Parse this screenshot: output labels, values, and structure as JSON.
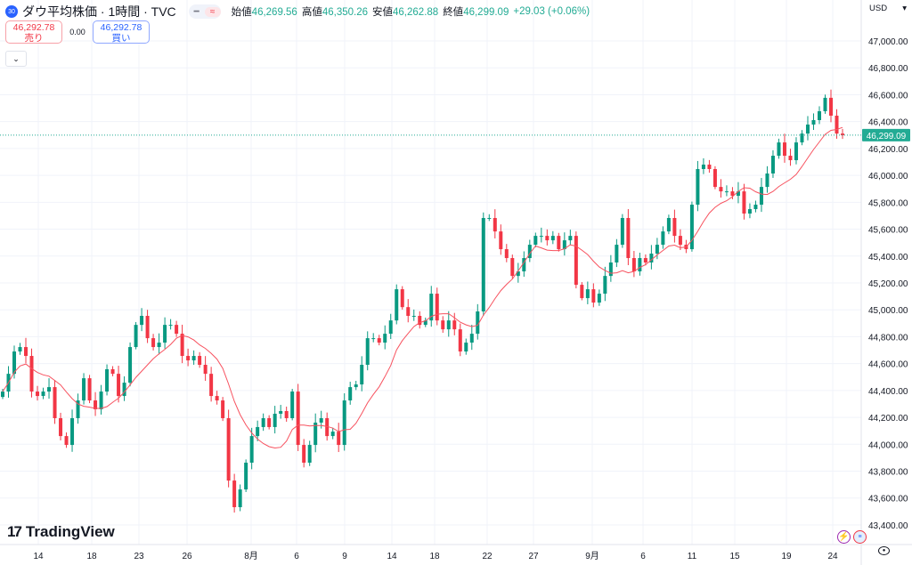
{
  "header": {
    "symbol_badge": "30",
    "title": "ダウ平均株価 · 1時間 · TVC",
    "pill_icons": [
      "minus-icon",
      "approx-icon"
    ],
    "ohlc": {
      "open_label": "始値",
      "open": "46,269.56",
      "high_label": "高値",
      "high": "46,350.26",
      "low_label": "安値",
      "low": "46,262.88",
      "close_label": "終値",
      "close": "46,299.09",
      "change": "+29.03 (+0.06%)"
    }
  },
  "trade": {
    "sell_price": "46,292.78",
    "sell_label": "売り",
    "spread": "0.00",
    "buy_price": "46,292.78",
    "buy_label": "買い"
  },
  "currency": "USD",
  "last_price_label": "46,299.09",
  "logo": "TradingView",
  "colors": {
    "up": "#089981",
    "down": "#f23645",
    "ma": "#f7525f",
    "grid": "#f0f3fa",
    "last": "#22ab94"
  },
  "chart_data": {
    "type": "candlestick",
    "interval": "1時間",
    "ylabel": "USD",
    "ylim": [
      43300,
      47100
    ],
    "yticks": [
      47000,
      46800,
      46600,
      46400,
      46200,
      46000,
      45800,
      45600,
      45400,
      45200,
      45000,
      44800,
      44600,
      44400,
      44200,
      44000,
      43800,
      43600,
      43400
    ],
    "ytick_labels": [
      "47,000.00",
      "46,800.00",
      "46,600.00",
      "46,400.00",
      "46,200.00",
      "46,000.00",
      "45,800.00",
      "45,600.00",
      "45,400.00",
      "45,200.00",
      "45,000.00",
      "44,800.00",
      "44,600.00",
      "44,400.00",
      "44,200.00",
      "44,000.00",
      "43,800.00",
      "43,600.00",
      "43,400.00"
    ],
    "xtick_labels": [
      "14",
      "18",
      "23",
      "26",
      "8月",
      "6",
      "9",
      "14",
      "18",
      "22",
      "27",
      "9月",
      "6",
      "11",
      "15",
      "19",
      "24"
    ],
    "last_price": 46299.09,
    "ma_period": 10,
    "closes_approx": [
      44392,
      44524,
      44690,
      44723,
      44657,
      44392,
      44359,
      44392,
      44425,
      44194,
      44061,
      43995,
      44194,
      44326,
      44491,
      44326,
      44260,
      44392,
      44558,
      44524,
      44359,
      44458,
      44723,
      44888,
      44955,
      44789,
      44723,
      44756,
      44888,
      44888,
      44822,
      44657,
      44624,
      44657,
      44591,
      44524,
      44359,
      44326,
      44194,
      43730,
      43532,
      43664,
      43863,
      44061,
      44128,
      44194,
      44128,
      44227,
      44247,
      44194,
      44392,
      43995,
      43863,
      43995,
      44161,
      44194,
      44061,
      44094,
      43995,
      44326,
      44425,
      44445,
      44591,
      44789,
      44789,
      44756,
      44822,
      44921,
      45153,
      45020,
      44955,
      44955,
      44888,
      44921,
      45120,
      44921,
      44855,
      44921,
      44855,
      44690,
      44756,
      44822,
      44988,
      45683,
      45683,
      45583,
      45451,
      45385,
      45252,
      45286,
      45385,
      45484,
      45550,
      45550,
      45517,
      45550,
      45451,
      45517,
      45550,
      45186,
      45087,
      45153,
      45054,
      45120,
      45252,
      45352,
      45484,
      45683,
      45385,
      45286,
      45385,
      45352,
      45418,
      45484,
      45583,
      45683,
      45550,
      45484,
      45451,
      45782,
      46047,
      46080,
      46047,
      45914,
      45881,
      45881,
      45848,
      45881,
      45716,
      45749,
      45782,
      45914,
      46014,
      46146,
      46245,
      46146,
      46113,
      46245,
      46311,
      46378,
      46411,
      46477,
      46577,
      46444,
      46311,
      46299
    ]
  }
}
